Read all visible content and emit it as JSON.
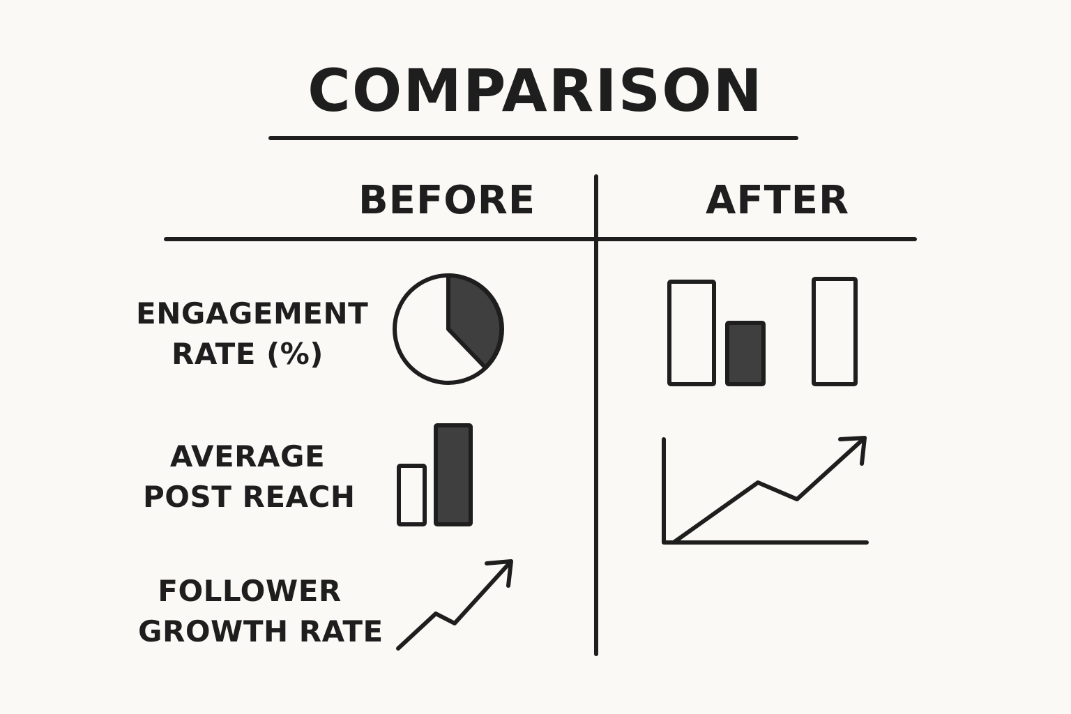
{
  "title": "COMPARISON",
  "columns": {
    "before": "BEFORE",
    "after": "AFTER"
  },
  "metrics": [
    {
      "line1": "ENGAGEMENT",
      "line2": "RATE (%)"
    },
    {
      "line1": "AVERAGE",
      "line2": "POST REACH"
    },
    {
      "line1": "FOLLOWER",
      "line2": "GROWTH RATE"
    }
  ],
  "icons": {
    "before_engagement": "pie-chart-icon",
    "before_reach": "bar-chart-icon",
    "before_growth": "trend-up-arrow-icon",
    "after_engagement": "bar-chart-icon",
    "after_reach": "line-chart-trend-up-icon"
  },
  "colors": {
    "ink": "#1e1e1e",
    "fill": "#3f3f3f",
    "background": "#fbf9f5"
  }
}
